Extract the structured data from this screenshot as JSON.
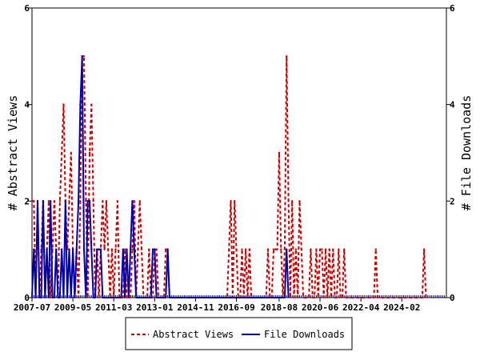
{
  "chart_data": {
    "type": "line",
    "title": "",
    "ylabel": "# Abstract Views",
    "y2label": "# File Downloads",
    "ylim": [
      0,
      6
    ],
    "y_ticks": [
      "0",
      "2",
      "4",
      "6"
    ],
    "x_tick_labels": [
      "2007-07",
      "2009-05",
      "2011-03",
      "2013-01",
      "2014-11",
      "2016-09",
      "2018-08",
      "2020-06",
      "2022-04",
      "2024-02"
    ],
    "x_tick_months": [
      "2007-07",
      "2009-05",
      "2011-03",
      "2013-01",
      "2014-11",
      "2016-09",
      "2018-08",
      "2020-06",
      "2022-04",
      "2024-02"
    ],
    "x_range": [
      "2007-07",
      "2026-02"
    ],
    "legend_position": "bottom",
    "series": [
      {
        "name": "Abstract Views",
        "color": "#cc0000",
        "style": "dashed",
        "values": [
          {
            "x": "2007-07",
            "y": 2
          },
          {
            "x": "2007-08",
            "y": 2
          },
          {
            "x": "2007-09",
            "y": 0
          },
          {
            "x": "2007-10",
            "y": 2
          },
          {
            "x": "2007-11",
            "y": 0
          },
          {
            "x": "2007-12",
            "y": 1
          },
          {
            "x": "2008-01",
            "y": 2
          },
          {
            "x": "2008-02",
            "y": 0
          },
          {
            "x": "2008-03",
            "y": 1
          },
          {
            "x": "2008-04",
            "y": 2
          },
          {
            "x": "2008-05",
            "y": 0
          },
          {
            "x": "2008-06",
            "y": 1
          },
          {
            "x": "2008-07",
            "y": 2
          },
          {
            "x": "2008-08",
            "y": 1
          },
          {
            "x": "2008-09",
            "y": 0
          },
          {
            "x": "2008-10",
            "y": 2
          },
          {
            "x": "2008-11",
            "y": 3
          },
          {
            "x": "2008-12",
            "y": 4
          },
          {
            "x": "2009-01",
            "y": 2
          },
          {
            "x": "2009-02",
            "y": 1
          },
          {
            "x": "2009-03",
            "y": 2
          },
          {
            "x": "2009-04",
            "y": 3
          },
          {
            "x": "2009-05",
            "y": 1
          },
          {
            "x": "2009-06",
            "y": 0
          },
          {
            "x": "2009-07",
            "y": 1
          },
          {
            "x": "2009-08",
            "y": 0
          },
          {
            "x": "2009-09",
            "y": 2
          },
          {
            "x": "2009-10",
            "y": 5
          },
          {
            "x": "2009-11",
            "y": 5
          },
          {
            "x": "2009-12",
            "y": 2
          },
          {
            "x": "2010-01",
            "y": 0
          },
          {
            "x": "2010-02",
            "y": 3
          },
          {
            "x": "2010-03",
            "y": 4
          },
          {
            "x": "2010-04",
            "y": 2
          },
          {
            "x": "2010-05",
            "y": 0
          },
          {
            "x": "2010-06",
            "y": 1
          },
          {
            "x": "2010-07",
            "y": 0
          },
          {
            "x": "2010-08",
            "y": 1
          },
          {
            "x": "2010-09",
            "y": 2
          },
          {
            "x": "2010-10",
            "y": 1
          },
          {
            "x": "2010-11",
            "y": 2
          },
          {
            "x": "2010-12",
            "y": 1
          },
          {
            "x": "2011-01",
            "y": 0
          },
          {
            "x": "2011-02",
            "y": 1
          },
          {
            "x": "2011-03",
            "y": 0
          },
          {
            "x": "2011-04",
            "y": 1
          },
          {
            "x": "2011-05",
            "y": 2
          },
          {
            "x": "2011-06",
            "y": 0
          },
          {
            "x": "2011-07",
            "y": 0
          },
          {
            "x": "2011-08",
            "y": 0
          },
          {
            "x": "2011-09",
            "y": 1
          },
          {
            "x": "2011-10",
            "y": 0
          },
          {
            "x": "2011-11",
            "y": 0
          },
          {
            "x": "2011-12",
            "y": 0
          },
          {
            "x": "2012-01",
            "y": 1
          },
          {
            "x": "2012-02",
            "y": 2
          },
          {
            "x": "2012-03",
            "y": 0
          },
          {
            "x": "2012-04",
            "y": 1
          },
          {
            "x": "2012-05",
            "y": 2
          },
          {
            "x": "2012-06",
            "y": 1
          },
          {
            "x": "2012-07",
            "y": 0
          },
          {
            "x": "2012-08",
            "y": 0
          },
          {
            "x": "2012-09",
            "y": 0
          },
          {
            "x": "2012-10",
            "y": 1
          },
          {
            "x": "2012-11",
            "y": 0
          },
          {
            "x": "2012-12",
            "y": 0
          },
          {
            "x": "2013-01",
            "y": 1
          },
          {
            "x": "2013-02",
            "y": 1
          },
          {
            "x": "2013-03",
            "y": 0
          },
          {
            "x": "2013-04",
            "y": 0
          },
          {
            "x": "2013-05",
            "y": 0
          },
          {
            "x": "2013-06",
            "y": 0
          },
          {
            "x": "2013-07",
            "y": 1
          },
          {
            "x": "2013-08",
            "y": 1
          },
          {
            "x": "2013-09",
            "y": 0
          },
          {
            "x": "2016-04",
            "y": 0
          },
          {
            "x": "2016-05",
            "y": 1
          },
          {
            "x": "2016-06",
            "y": 2
          },
          {
            "x": "2016-07",
            "y": 0
          },
          {
            "x": "2016-08",
            "y": 2
          },
          {
            "x": "2016-09",
            "y": 1
          },
          {
            "x": "2016-10",
            "y": 0
          },
          {
            "x": "2016-11",
            "y": 0
          },
          {
            "x": "2016-12",
            "y": 1
          },
          {
            "x": "2017-01",
            "y": 0
          },
          {
            "x": "2017-02",
            "y": 1
          },
          {
            "x": "2017-03",
            "y": 0
          },
          {
            "x": "2017-04",
            "y": 1
          },
          {
            "x": "2017-05",
            "y": 0
          },
          {
            "x": "2018-01",
            "y": 0
          },
          {
            "x": "2018-02",
            "y": 1
          },
          {
            "x": "2018-03",
            "y": 0
          },
          {
            "x": "2018-04",
            "y": 0
          },
          {
            "x": "2018-05",
            "y": 1
          },
          {
            "x": "2018-06",
            "y": 1
          },
          {
            "x": "2018-07",
            "y": 1
          },
          {
            "x": "2018-08",
            "y": 3
          },
          {
            "x": "2018-09",
            "y": 1
          },
          {
            "x": "2018-10",
            "y": 0
          },
          {
            "x": "2018-11",
            "y": 1
          },
          {
            "x": "2018-12",
            "y": 5
          },
          {
            "x": "2019-01",
            "y": 2
          },
          {
            "x": "2019-02",
            "y": 0
          },
          {
            "x": "2019-03",
            "y": 2
          },
          {
            "x": "2019-04",
            "y": 0
          },
          {
            "x": "2019-05",
            "y": 1
          },
          {
            "x": "2019-06",
            "y": 0
          },
          {
            "x": "2019-07",
            "y": 2
          },
          {
            "x": "2019-08",
            "y": 1
          },
          {
            "x": "2019-09",
            "y": 0
          },
          {
            "x": "2019-10",
            "y": 0
          },
          {
            "x": "2019-11",
            "y": 0
          },
          {
            "x": "2019-12",
            "y": 0
          },
          {
            "x": "2020-01",
            "y": 1
          },
          {
            "x": "2020-02",
            "y": 0
          },
          {
            "x": "2020-03",
            "y": 0
          },
          {
            "x": "2020-04",
            "y": 1
          },
          {
            "x": "2020-05",
            "y": 0
          },
          {
            "x": "2020-06",
            "y": 1
          },
          {
            "x": "2020-07",
            "y": 1
          },
          {
            "x": "2020-08",
            "y": 0
          },
          {
            "x": "2020-09",
            "y": 1
          },
          {
            "x": "2020-10",
            "y": 0
          },
          {
            "x": "2020-11",
            "y": 1
          },
          {
            "x": "2020-12",
            "y": 0
          },
          {
            "x": "2021-01",
            "y": 1
          },
          {
            "x": "2021-02",
            "y": 0
          },
          {
            "x": "2021-03",
            "y": 0
          },
          {
            "x": "2021-04",
            "y": 1
          },
          {
            "x": "2021-05",
            "y": 0
          },
          {
            "x": "2021-06",
            "y": 0
          },
          {
            "x": "2021-07",
            "y": 1
          },
          {
            "x": "2021-08",
            "y": 0
          },
          {
            "x": "2022-11",
            "y": 0
          },
          {
            "x": "2022-12",
            "y": 1
          },
          {
            "x": "2023-01",
            "y": 0
          },
          {
            "x": "2025-01",
            "y": 0
          },
          {
            "x": "2025-02",
            "y": 1
          },
          {
            "x": "2025-03",
            "y": 0
          }
        ]
      },
      {
        "name": "File Downloads",
        "color": "#0000aa",
        "style": "solid",
        "values": [
          {
            "x": "2007-07",
            "y": 0
          },
          {
            "x": "2007-08",
            "y": 1
          },
          {
            "x": "2007-09",
            "y": 0
          },
          {
            "x": "2007-10",
            "y": 2
          },
          {
            "x": "2007-11",
            "y": 0
          },
          {
            "x": "2007-12",
            "y": 0
          },
          {
            "x": "2008-01",
            "y": 2
          },
          {
            "x": "2008-02",
            "y": 0
          },
          {
            "x": "2008-03",
            "y": 1
          },
          {
            "x": "2008-04",
            "y": 0
          },
          {
            "x": "2008-05",
            "y": 2
          },
          {
            "x": "2008-06",
            "y": 0
          },
          {
            "x": "2008-07",
            "y": 0
          },
          {
            "x": "2008-08",
            "y": 1
          },
          {
            "x": "2008-09",
            "y": 0
          },
          {
            "x": "2008-10",
            "y": 0
          },
          {
            "x": "2008-11",
            "y": 1
          },
          {
            "x": "2008-12",
            "y": 0
          },
          {
            "x": "2009-01",
            "y": 2
          },
          {
            "x": "2009-02",
            "y": 0
          },
          {
            "x": "2009-03",
            "y": 1
          },
          {
            "x": "2009-04",
            "y": 0
          },
          {
            "x": "2009-05",
            "y": 1
          },
          {
            "x": "2009-06",
            "y": 0
          },
          {
            "x": "2009-07",
            "y": 1
          },
          {
            "x": "2009-08",
            "y": 2
          },
          {
            "x": "2009-09",
            "y": 4
          },
          {
            "x": "2009-10",
            "y": 5
          },
          {
            "x": "2009-11",
            "y": 1
          },
          {
            "x": "2009-12",
            "y": 0
          },
          {
            "x": "2010-01",
            "y": 2
          },
          {
            "x": "2010-02",
            "y": 2
          },
          {
            "x": "2010-03",
            "y": 1
          },
          {
            "x": "2010-04",
            "y": 0
          },
          {
            "x": "2010-05",
            "y": 0
          },
          {
            "x": "2010-06",
            "y": 1
          },
          {
            "x": "2010-07",
            "y": 1
          },
          {
            "x": "2010-08",
            "y": 1
          },
          {
            "x": "2010-09",
            "y": 0
          },
          {
            "x": "2011-07",
            "y": 0
          },
          {
            "x": "2011-08",
            "y": 1
          },
          {
            "x": "2011-09",
            "y": 0
          },
          {
            "x": "2011-10",
            "y": 1
          },
          {
            "x": "2011-11",
            "y": 0
          },
          {
            "x": "2011-12",
            "y": 1
          },
          {
            "x": "2012-01",
            "y": 2
          },
          {
            "x": "2012-02",
            "y": 1
          },
          {
            "x": "2012-03",
            "y": 0
          },
          {
            "x": "2012-11",
            "y": 0
          },
          {
            "x": "2012-12",
            "y": 1
          },
          {
            "x": "2013-01",
            "y": 1
          },
          {
            "x": "2013-02",
            "y": 0
          },
          {
            "x": "2013-07",
            "y": 0
          },
          {
            "x": "2013-08",
            "y": 1
          },
          {
            "x": "2013-09",
            "y": 0
          },
          {
            "x": "2018-11",
            "y": 0
          },
          {
            "x": "2018-12",
            "y": 1
          },
          {
            "x": "2019-01",
            "y": 0
          }
        ]
      }
    ]
  }
}
